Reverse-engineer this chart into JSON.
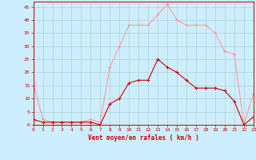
{
  "hours": [
    0,
    1,
    2,
    3,
    4,
    5,
    6,
    7,
    8,
    9,
    10,
    11,
    12,
    13,
    14,
    15,
    16,
    17,
    18,
    19,
    20,
    21,
    22,
    23
  ],
  "wind_avg": [
    2,
    1,
    1,
    1,
    1,
    1,
    1,
    0,
    8,
    10,
    16,
    17,
    17,
    25,
    22,
    20,
    17,
    14,
    14,
    14,
    13,
    9,
    0,
    3
  ],
  "wind_gust": [
    16,
    2,
    1,
    1,
    1,
    1,
    2,
    1,
    22,
    30,
    38,
    38,
    38,
    42,
    46,
    40,
    38,
    38,
    38,
    35,
    28,
    27,
    0,
    12
  ],
  "bg_color": "#cceeff",
  "grid_color": "#b0d0d0",
  "avg_color": "#cc0000",
  "gust_color": "#ff9999",
  "xlabel": "Vent moyen/en rafales ( km/h )",
  "xlabel_color": "#cc0000",
  "tick_color": "#cc0000",
  "ylim": [
    0,
    47
  ],
  "yticks": [
    0,
    5,
    10,
    15,
    20,
    25,
    30,
    35,
    40,
    45
  ],
  "xlim": [
    0,
    23
  ]
}
